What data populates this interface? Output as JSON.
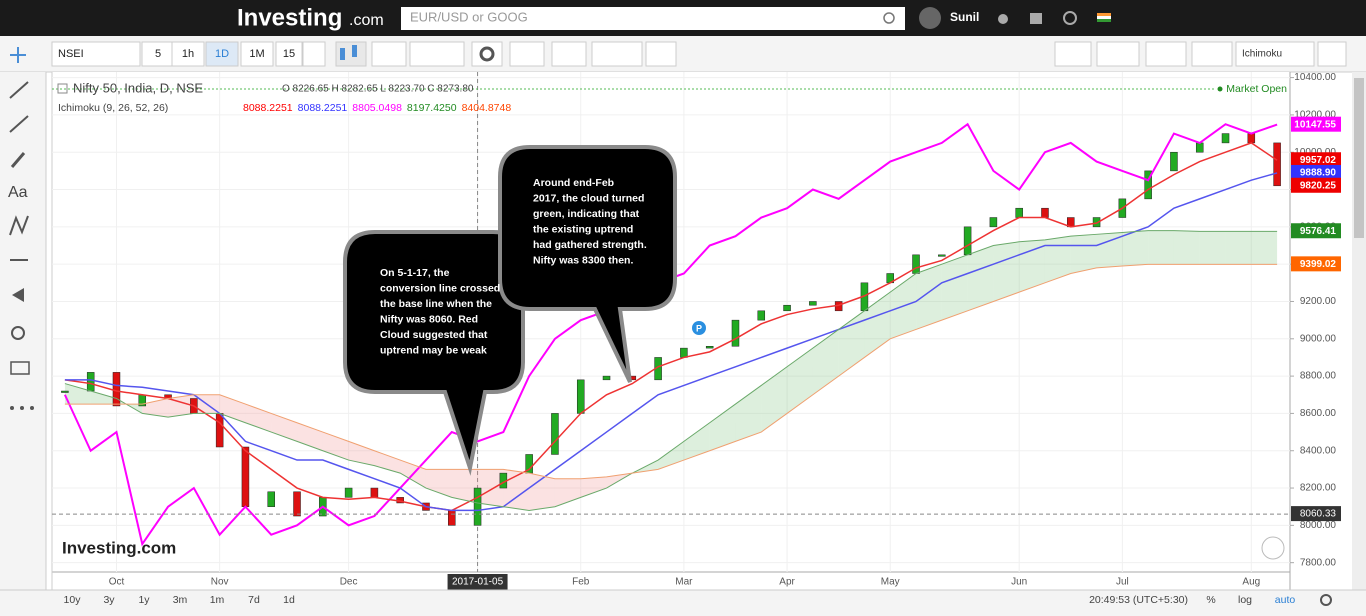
{
  "header": {
    "logo": "Investing",
    "logo_suffix": ".com",
    "search_placeholder": "EUR/USD or GOOG",
    "user": "Sunil"
  },
  "toolbar": {
    "symbol": "NSEI",
    "intervals": [
      "5",
      "1h",
      "1D",
      "1M",
      "15"
    ],
    "indicator": "Ichimoku"
  },
  "sidebar": {
    "text_tool": "Aa"
  },
  "bottom_bar": {
    "ranges": [
      "10y",
      "3y",
      "1y",
      "3m",
      "1m",
      "7d",
      "1d"
    ],
    "time": "20:49:53 (UTC+5:30)",
    "options": [
      "%",
      "log",
      "auto"
    ]
  },
  "chart_data": {
    "type": "candlestick",
    "title": "Nifty 50, India, D, NSE",
    "ohlc": "O 8226.65 H 8282.65 L 8223.70 C 8273.80",
    "indicator_legend": "Ichimoku (9, 26, 52, 26)",
    "indicator_values": [
      {
        "value": 8088.2251,
        "color": "#ff0000"
      },
      {
        "value": 8088.2251,
        "color": "#3333ff"
      },
      {
        "value": 8805.0498,
        "color": "#ff00ff"
      },
      {
        "value": 8197.425,
        "label": "8197.4250",
        "color": "#228b22"
      },
      {
        "value": 8404.8748,
        "color": "#ff4500"
      }
    ],
    "status": "Market Open",
    "watermark": "Investing.com",
    "marker": "P",
    "categories": [
      null,
      null,
      "Oct",
      null,
      null,
      null,
      "Nov",
      null,
      null,
      null,
      null,
      "Dec",
      null,
      null,
      null,
      null,
      "2017-01-05",
      null,
      null,
      null,
      "Feb",
      null,
      null,
      null,
      "Mar",
      null,
      null,
      null,
      "Apr",
      null,
      null,
      null,
      "May",
      null,
      null,
      null,
      null,
      "Jun",
      null,
      null,
      null,
      "Jul",
      null,
      null,
      null,
      null,
      "Aug",
      null
    ],
    "crosshair_at": "2017-01-05",
    "crosshair_price": 8060.33,
    "close": [
      8720,
      8820,
      8640,
      8700,
      8680,
      8600,
      8420,
      8100,
      8180,
      8050,
      8150,
      8200,
      8150,
      8120,
      8080,
      8000,
      8200,
      8280,
      8380,
      8600,
      8780,
      8800,
      8780,
      8900,
      8950,
      8960,
      9100,
      9150,
      9180,
      9200,
      9150,
      9300,
      9350,
      9450,
      9450,
      9600,
      9650,
      9700,
      9650,
      9600,
      9650,
      9750,
      9900,
      10000,
      10050,
      10100,
      10050,
      9820
    ],
    "series": [
      {
        "color": "#ff00ff",
        "values": [
          8700,
          8400,
          8500,
          7900,
          8100,
          8200,
          7950,
          8100,
          7950,
          8000,
          8100,
          8000,
          8050,
          8200,
          8350,
          8500,
          8450,
          8500,
          8800,
          9000,
          9100,
          9150,
          9250,
          9300,
          9350,
          9500,
          9550,
          9650,
          9700,
          9800,
          9750,
          9850,
          9950,
          10000,
          10050,
          10150,
          9900,
          9800,
          10000,
          10050,
          9950,
          9900,
          9850,
          10100,
          10050,
          10150,
          10100,
          10148
        ]
      },
      {
        "color": "#ee3333",
        "values": [
          8780,
          8760,
          8720,
          8700,
          8680,
          8640,
          8550,
          8400,
          8300,
          8200,
          8150,
          8140,
          8150,
          8130,
          8100,
          8080,
          8150,
          8230,
          8300,
          8450,
          8600,
          8700,
          8760,
          8850,
          8900,
          8930,
          9000,
          9080,
          9130,
          9160,
          9180,
          9230,
          9300,
          9380,
          9420,
          9500,
          9580,
          9650,
          9650,
          9600,
          9620,
          9700,
          9800,
          9880,
          9950,
          10000,
          10050,
          9957
        ]
      },
      {
        "color": "#5555ee",
        "values": [
          8780,
          8780,
          8750,
          8740,
          8720,
          8700,
          8600,
          8450,
          8400,
          8350,
          8350,
          8300,
          8250,
          8200,
          8100,
          8080,
          8080,
          8100,
          8200,
          8300,
          8400,
          8500,
          8600,
          8700,
          8750,
          8800,
          8850,
          8900,
          8950,
          9000,
          9050,
          9100,
          9150,
          9200,
          9300,
          9350,
          9400,
          9450,
          9500,
          9500,
          9500,
          9550,
          9600,
          9700,
          9750,
          9800,
          9850,
          9889
        ]
      },
      {
        "color": "#6aa96a",
        "values": [
          8760,
          8720,
          8680,
          8600,
          8580,
          8600,
          8600,
          8550,
          8500,
          8450,
          8400,
          8350,
          8320,
          8280,
          8200,
          8150,
          8120,
          8100,
          8080,
          8100,
          8150,
          8200,
          8280,
          8350,
          8450,
          8550,
          8650,
          8750,
          8850,
          8950,
          9050,
          9150,
          9250,
          9350,
          9400,
          9450,
          9500,
          9520,
          9530,
          9550,
          9560,
          9570,
          9580,
          9580,
          9576,
          9576,
          9576,
          9576
        ]
      },
      {
        "color": "#f0a070",
        "values": [
          8650,
          8650,
          8650,
          8650,
          8680,
          8700,
          8700,
          8650,
          8600,
          8550,
          8500,
          8450,
          8400,
          8350,
          8300,
          8300,
          8300,
          8300,
          8280,
          8250,
          8250,
          8260,
          8280,
          8300,
          8350,
          8400,
          8450,
          8500,
          8600,
          8700,
          8800,
          8900,
          9000,
          9050,
          9100,
          9150,
          9200,
          9250,
          9300,
          9350,
          9380,
          9390,
          9399,
          9399,
          9399,
          9399,
          9399,
          9399
        ]
      }
    ],
    "price_tags": [
      {
        "value": 10147.55,
        "color": "#ff00ff"
      },
      {
        "value": 9957.02,
        "color": "#ee0000"
      },
      {
        "value": 9888.9,
        "label": "9888.90",
        "color": "#3333ff"
      },
      {
        "value": 9820.25,
        "color": "#ee0000"
      },
      {
        "value": 9576.41,
        "color": "#228b22"
      },
      {
        "value": 9399.02,
        "color": "#ff6600"
      }
    ],
    "ylim": [
      7750,
      10430
    ],
    "yticks": [
      {
        "value": 7800,
        "label": "7800.00"
      },
      {
        "value": 8000,
        "label": "8000.00"
      },
      {
        "value": 8200,
        "label": "8200.00"
      },
      {
        "value": 8400,
        "label": "8400.00"
      },
      {
        "value": 8600,
        "label": "8600.00"
      },
      {
        "value": 8800,
        "label": "8800.00"
      },
      {
        "value": 9000,
        "label": "9000.00"
      },
      {
        "value": 9200,
        "label": "9200.00"
      },
      {
        "value": 9400,
        "label": "9400.00"
      },
      {
        "value": 9600,
        "label": "9600.00"
      },
      {
        "value": 9800,
        "label": "9800.00"
      },
      {
        "value": 10000,
        "label": "10000.00"
      },
      {
        "value": 10200,
        "label": "10200.00"
      },
      {
        "value": 10400,
        "label": "10400.00"
      }
    ],
    "grid": true,
    "up_color": "#22aa22",
    "down_color": "#dd1111",
    "annotations": [
      {
        "lines": [
          "On 5-1-17, the",
          "conversion line crossed",
          "the base line when the",
          "Nifty was 8060. Red",
          "Cloud  suggested that",
          "uptrend may be weak"
        ]
      },
      {
        "lines": [
          "Around end-Feb",
          "2017, the cloud turned",
          "green, indicating that",
          "the existing uptrend",
          "had gathered strength.",
          "Nifty was 8300 then."
        ]
      }
    ]
  }
}
